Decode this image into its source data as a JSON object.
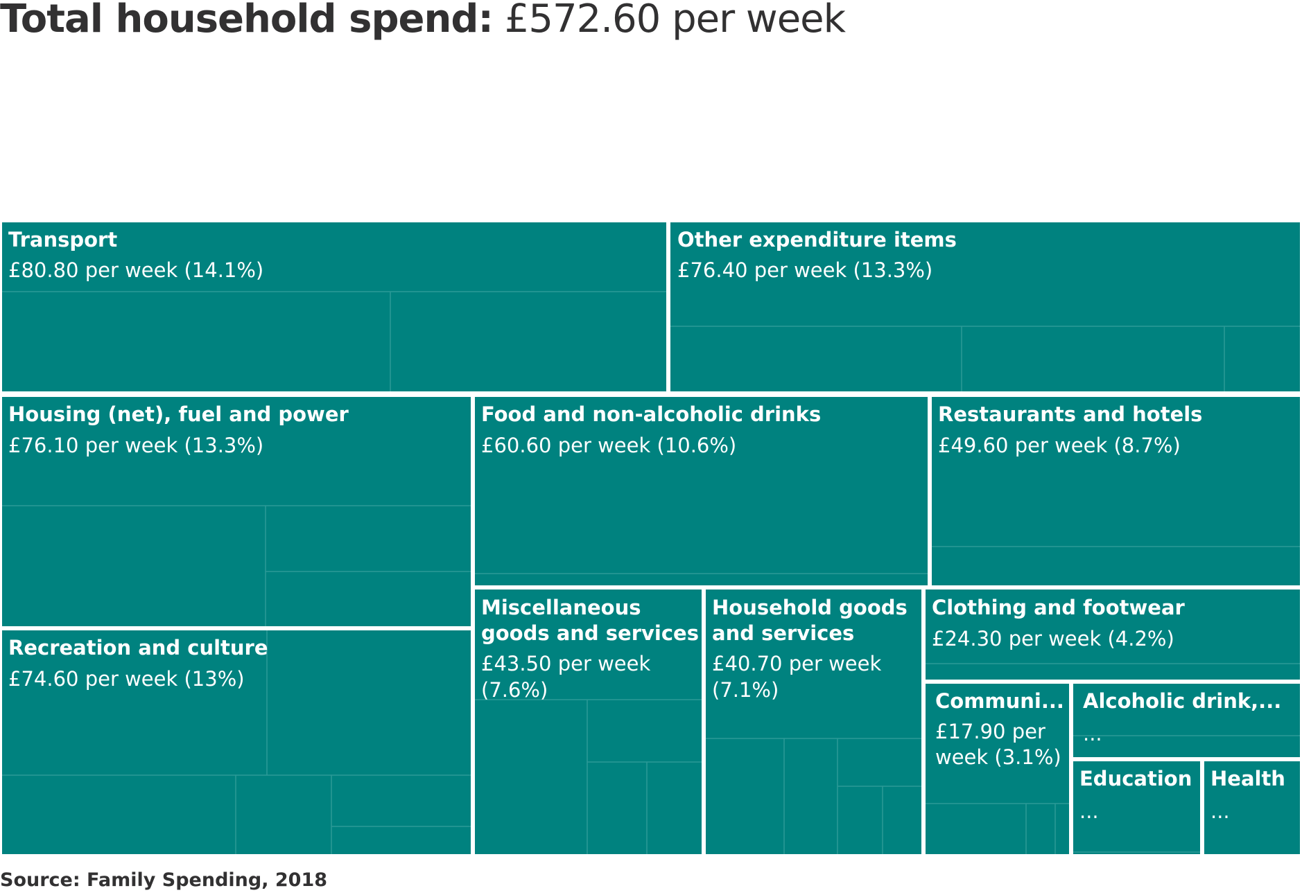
{
  "title": {
    "bold": "Total household spend:",
    "value": "£572.60 per week"
  },
  "source": "Source: Family Spending, 2018",
  "colors": {
    "tile_fill": "#00827f",
    "tile_border": "#ffffff",
    "inner_line": "#2c9a97",
    "text": "#ffffff",
    "title_text": "#323132"
  },
  "chart_data": {
    "type": "treemap",
    "total": 572.6,
    "unit": "£ per week",
    "categories": [
      {
        "name": "Transport",
        "value": 80.8,
        "percent": 14.1,
        "label": "£80.80 per week (14.1%)"
      },
      {
        "name": "Other expenditure items",
        "value": 76.4,
        "percent": 13.3,
        "label": "£76.40 per week (13.3%)"
      },
      {
        "name": "Housing (net), fuel and power",
        "value": 76.1,
        "percent": 13.3,
        "label": "£76.10 per week (13.3%)"
      },
      {
        "name": "Food and non-alcoholic drinks",
        "value": 60.6,
        "percent": 10.6,
        "label": "£60.60 per week (10.6%)"
      },
      {
        "name": "Restaurants and hotels",
        "value": 49.6,
        "percent": 8.7,
        "label": "£49.60 per week (8.7%)"
      },
      {
        "name": "Recreation and culture",
        "value": 74.6,
        "percent": 13,
        "label": "£74.60 per week (13%)"
      },
      {
        "name": "Miscellaneous goods and services",
        "value": 43.5,
        "percent": 7.6,
        "label": "£43.50 per week (7.6%)"
      },
      {
        "name": "Household goods and services",
        "value": 40.7,
        "percent": 7.1,
        "label": "£40.70 per week (7.1%)"
      },
      {
        "name": "Clothing and footwear",
        "value": 24.3,
        "percent": 4.2,
        "label": "£24.30 per week (4.2%)"
      },
      {
        "name": "Communi...",
        "value": 17.9,
        "percent": 3.1,
        "label": "£17.90 per week (3.1%)"
      },
      {
        "name": "Alcoholic drink,...",
        "value": null,
        "percent": null,
        "label": "..."
      },
      {
        "name": "Education",
        "value": null,
        "percent": null,
        "label": "..."
      },
      {
        "name": "Health",
        "value": null,
        "percent": null,
        "label": "..."
      }
    ]
  }
}
